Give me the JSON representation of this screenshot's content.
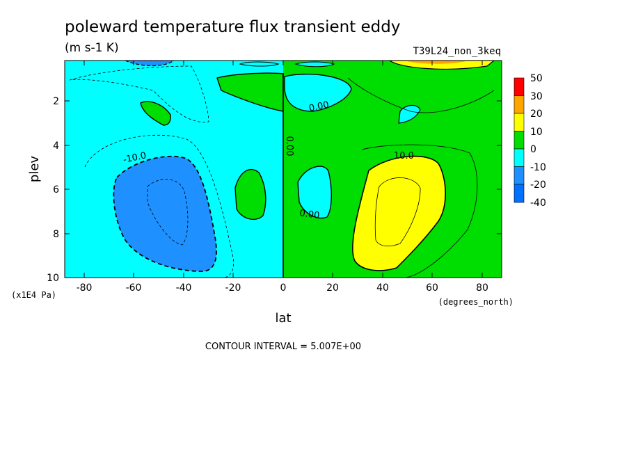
{
  "chart_data": {
    "type": "contour",
    "title": "poleward temperature flux transient eddy",
    "units": "(m s-1 K)",
    "run_label": "T39L24_non_3keq",
    "xlabel": "lat",
    "xunit": "(degrees_north)",
    "ylabel": "plev",
    "yunit": "(x1E4 Pa)",
    "xlim": [
      -88,
      88
    ],
    "ylim": [
      10,
      0.1
    ],
    "xticks": [
      -80,
      -60,
      -40,
      -20,
      0,
      20,
      40,
      60,
      80
    ],
    "yticks": [
      2,
      4,
      6,
      8,
      10
    ],
    "contour_interval_text": "CONTOUR INTERVAL = 5.007E+00",
    "contour_labels": [
      "-10.0",
      "0.00",
      "0.00",
      "0.00",
      "10.0"
    ],
    "colorbar": {
      "levels": [
        "50",
        "30",
        "20",
        "10",
        "0",
        "-10",
        "-20",
        "-40"
      ],
      "colors": [
        "#ff0000",
        "#ffa500",
        "#ffff00",
        "#00dd00",
        "#00ffff",
        "#1e90ff"
      ]
    }
  }
}
